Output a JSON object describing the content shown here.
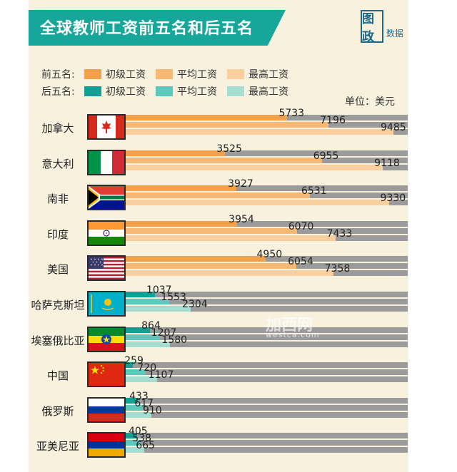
{
  "header": {
    "title": "全球教师工资前五名和后五名",
    "logo_glyph": "图政",
    "logo_text": "数据"
  },
  "legend": {
    "top_label": "前五名:",
    "bottom_label": "后五名:",
    "items": [
      "初级工资",
      "平均工资",
      "最高工资"
    ],
    "top_colors": [
      "#f3a04a",
      "#f7b873",
      "#f9cf9f"
    ],
    "bottom_colors": [
      "#139f96",
      "#5fc8bc",
      "#a6ddd3"
    ]
  },
  "unit": "单位：美元",
  "watermark": {
    "main": "加西网",
    "sub": "westca.com"
  },
  "chart_data": {
    "type": "bar",
    "orientation": "horizontal",
    "title": "全球教师工资前五名和后五名",
    "unit": "美元",
    "categories": [
      "加拿大",
      "意大利",
      "南非",
      "印度",
      "美国",
      "哈萨克斯坦",
      "埃塞俄比亚",
      "中国",
      "俄罗斯",
      "亚美尼亚"
    ],
    "groups": [
      "前五名",
      "前五名",
      "前五名",
      "前五名",
      "前五名",
      "后五名",
      "后五名",
      "后五名",
      "后五名",
      "后五名"
    ],
    "series": [
      {
        "name": "初级工资",
        "values": [
          5733,
          3525,
          3927,
          3954,
          4950,
          1037,
          864,
          259,
          433,
          405
        ]
      },
      {
        "name": "平均工资",
        "values": [
          7196,
          6955,
          6531,
          6070,
          6054,
          1553,
          1207,
          720,
          617,
          538
        ]
      },
      {
        "name": "最高工资",
        "values": [
          9485,
          9118,
          9330,
          7433,
          7358,
          2304,
          1580,
          1107,
          910,
          665
        ]
      }
    ],
    "xlim": [
      0,
      10000
    ],
    "flags": [
      "canada-flag",
      "italy-flag",
      "south-africa-flag",
      "india-flag",
      "usa-flag",
      "kazakhstan-flag",
      "ethiopia-flag",
      "china-flag",
      "russia-flag",
      "armenia-flag"
    ]
  }
}
